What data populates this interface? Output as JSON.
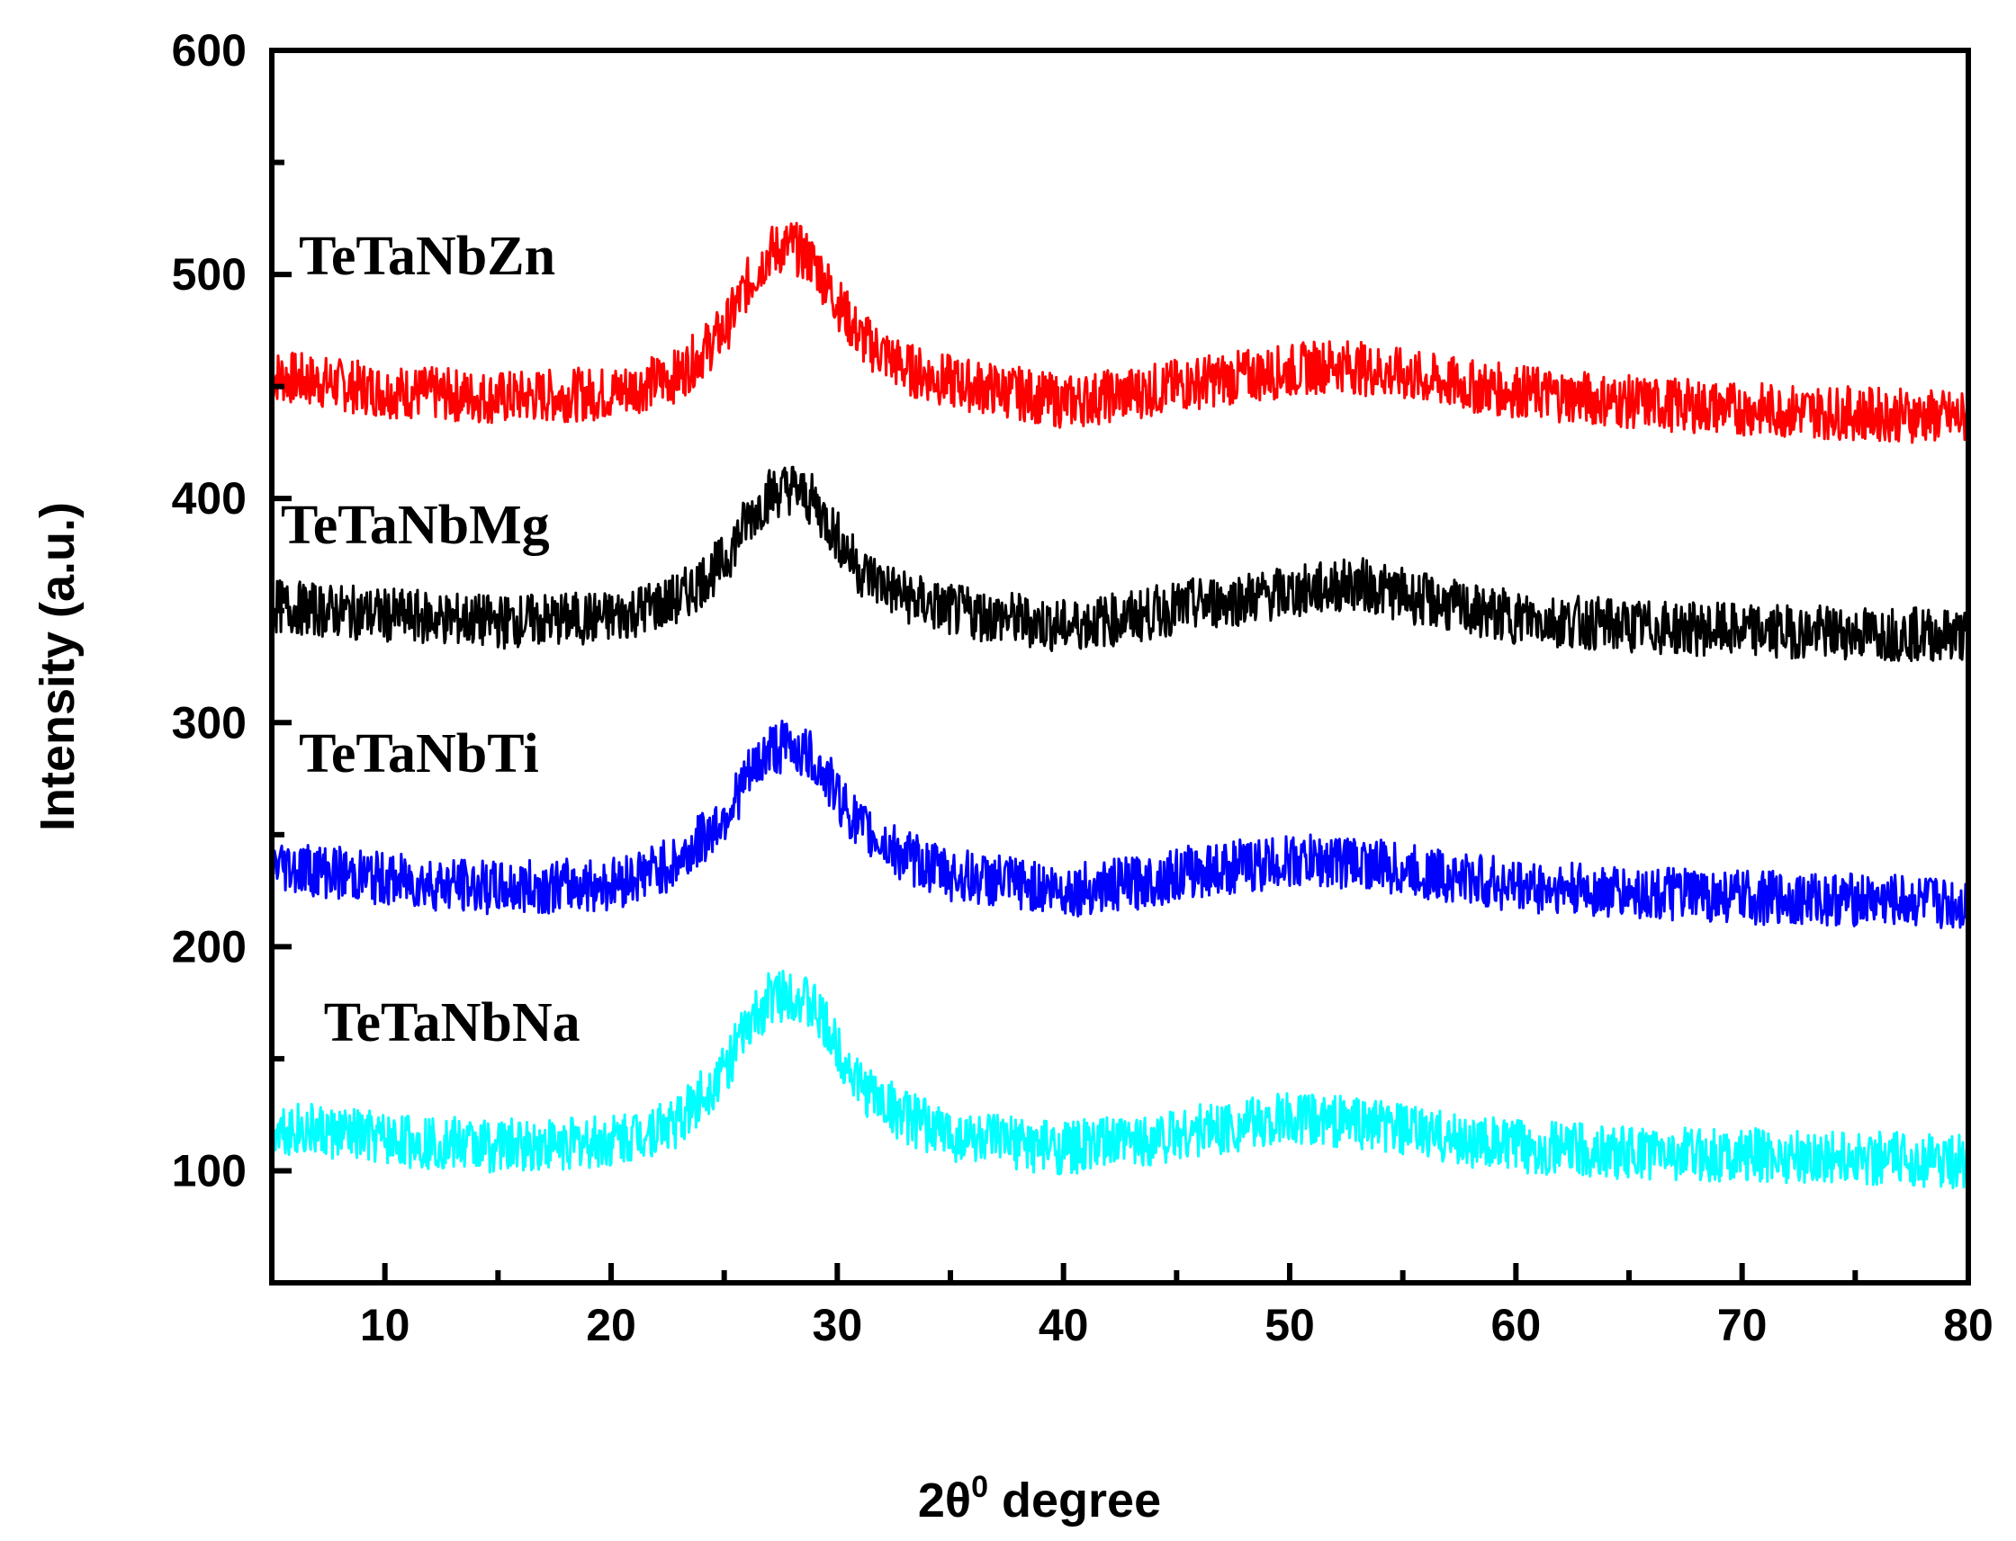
{
  "chart_data": {
    "type": "line",
    "title": "",
    "xlabel": "2θ",
    "xlabel_superscript": "0",
    "xlabel_suffix": " degree",
    "ylabel": "Intensity (a.u.)",
    "xlim": [
      5,
      80
    ],
    "ylim": [
      50,
      600
    ],
    "xticks": [
      10,
      20,
      30,
      40,
      50,
      60,
      70,
      80
    ],
    "xticks_minor_step": 5,
    "yticks": [
      100,
      200,
      300,
      400,
      500,
      600
    ],
    "yticks_minor_step": 50,
    "grid": false,
    "series": [
      {
        "name": "TeTaNbZn",
        "color": "#ff0000",
        "noise": 12,
        "points": [
          [
            5,
            455
          ],
          [
            10,
            448
          ],
          [
            15,
            445
          ],
          [
            20,
            447
          ],
          [
            23,
            455
          ],
          [
            25,
            475
          ],
          [
            26,
            495
          ],
          [
            27,
            510
          ],
          [
            28,
            513
          ],
          [
            29,
            505
          ],
          [
            30,
            488
          ],
          [
            31,
            472
          ],
          [
            33,
            458
          ],
          [
            35,
            452
          ],
          [
            38,
            447
          ],
          [
            40,
            443
          ],
          [
            43,
            447
          ],
          [
            46,
            452
          ],
          [
            50,
            457
          ],
          [
            52,
            460
          ],
          [
            55,
            455
          ],
          [
            58,
            450
          ],
          [
            60,
            448
          ],
          [
            65,
            443
          ],
          [
            70,
            440
          ],
          [
            75,
            438
          ],
          [
            80,
            436
          ]
        ]
      },
      {
        "name": "TeTaNbMg",
        "color": "#000000",
        "noise": 12,
        "points": [
          [
            5,
            352
          ],
          [
            10,
            348
          ],
          [
            15,
            345
          ],
          [
            20,
            347
          ],
          [
            23,
            355
          ],
          [
            25,
            372
          ],
          [
            26,
            390
          ],
          [
            27,
            402
          ],
          [
            28,
            405
          ],
          [
            29,
            398
          ],
          [
            30,
            383
          ],
          [
            31,
            368
          ],
          [
            33,
            356
          ],
          [
            35,
            350
          ],
          [
            38,
            346
          ],
          [
            40,
            343
          ],
          [
            43,
            347
          ],
          [
            46,
            353
          ],
          [
            50,
            358
          ],
          [
            53,
            362
          ],
          [
            55,
            357
          ],
          [
            58,
            350
          ],
          [
            60,
            347
          ],
          [
            65,
            343
          ],
          [
            70,
            341
          ],
          [
            75,
            340
          ],
          [
            80,
            339
          ]
        ]
      },
      {
        "name": "TeTaNbTi",
        "color": "#0000ff",
        "noise": 12,
        "points": [
          [
            5,
            237
          ],
          [
            10,
            230
          ],
          [
            15,
            226
          ],
          [
            20,
            228
          ],
          [
            23,
            238
          ],
          [
            25,
            258
          ],
          [
            26,
            275
          ],
          [
            27,
            288
          ],
          [
            28,
            290
          ],
          [
            29,
            283
          ],
          [
            30,
            268
          ],
          [
            31,
            253
          ],
          [
            33,
            240
          ],
          [
            35,
            232
          ],
          [
            38,
            228
          ],
          [
            40,
            225
          ],
          [
            43,
            228
          ],
          [
            46,
            234
          ],
          [
            50,
            238
          ],
          [
            53,
            238
          ],
          [
            55,
            234
          ],
          [
            58,
            230
          ],
          [
            60,
            227
          ],
          [
            65,
            224
          ],
          [
            70,
            222
          ],
          [
            75,
            221
          ],
          [
            80,
            219
          ]
        ]
      },
      {
        "name": "TeTaNbNa",
        "color": "#00ffff",
        "noise": 12,
        "points": [
          [
            5,
            120
          ],
          [
            10,
            114
          ],
          [
            15,
            111
          ],
          [
            20,
            113
          ],
          [
            23,
            122
          ],
          [
            25,
            145
          ],
          [
            26,
            163
          ],
          [
            27,
            177
          ],
          [
            28,
            180
          ],
          [
            29,
            172
          ],
          [
            30,
            155
          ],
          [
            31,
            138
          ],
          [
            33,
            124
          ],
          [
            35,
            116
          ],
          [
            38,
            112
          ],
          [
            40,
            110
          ],
          [
            43,
            113
          ],
          [
            46,
            118
          ],
          [
            50,
            123
          ],
          [
            53,
            122
          ],
          [
            55,
            118
          ],
          [
            58,
            113
          ],
          [
            60,
            111
          ],
          [
            65,
            108
          ],
          [
            70,
            107
          ],
          [
            75,
            106
          ],
          [
            80,
            104
          ]
        ]
      }
    ]
  }
}
